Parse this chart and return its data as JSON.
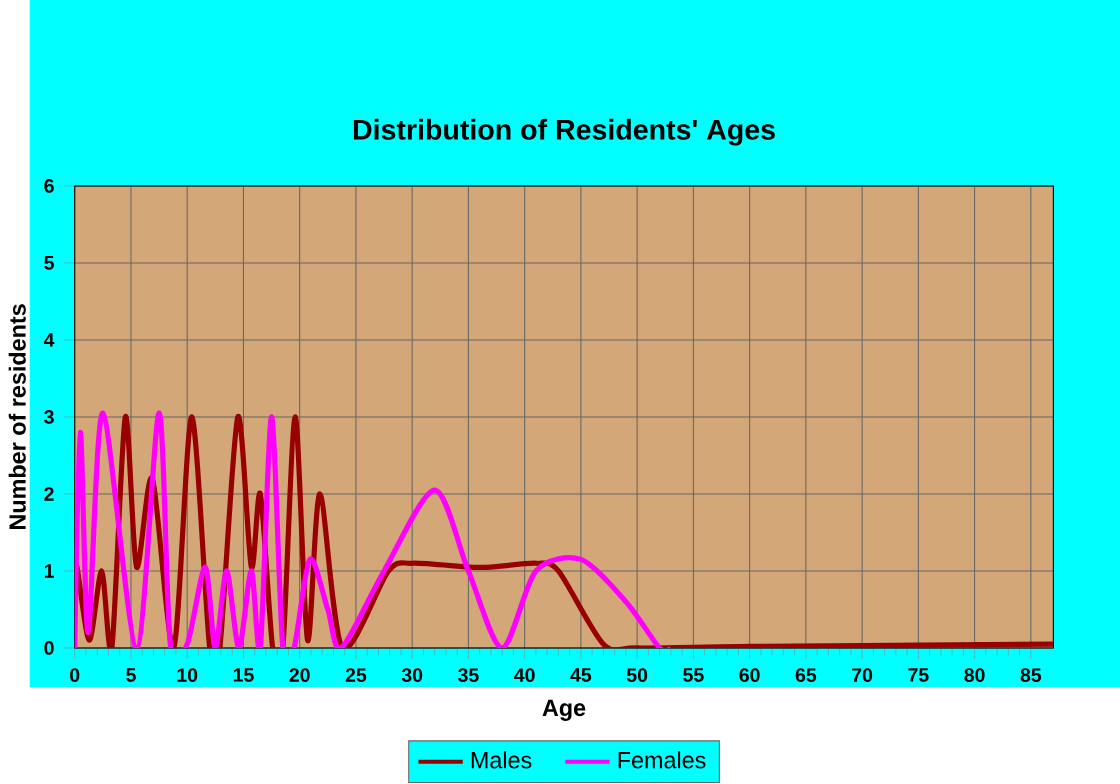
{
  "chart_data": {
    "type": "line",
    "title": "Distribution of Residents' Ages",
    "xlabel": "Age",
    "ylabel": "Number of residents",
    "xlim": [
      0,
      87
    ],
    "ylim": [
      0,
      6
    ],
    "xticks": [
      0,
      5,
      10,
      15,
      20,
      25,
      30,
      35,
      40,
      45,
      50,
      55,
      60,
      65,
      70,
      75,
      80,
      85
    ],
    "yticks": [
      0,
      1,
      2,
      3,
      4,
      5,
      6
    ],
    "grid": true,
    "legend": "bottom",
    "marker": "none",
    "line_style": "solid",
    "series": [
      {
        "name": "Males",
        "color": "#990000",
        "x": [
          0,
          0.2,
          1.3,
          2.4,
          3.3,
          4.5,
          5.5,
          6.9,
          8.8,
          10.4,
          12,
          12.9,
          14.5,
          15.7,
          16.5,
          17.6,
          18.5,
          19.6,
          20.7,
          21.8,
          23.8,
          27.9,
          30,
          35,
          37,
          41,
          43,
          47,
          50,
          60,
          70,
          87
        ],
        "values": [
          0.9,
          1.05,
          0.1,
          1.0,
          0,
          3.0,
          1.05,
          2.2,
          0,
          3.0,
          0,
          0,
          3.0,
          1.05,
          2.0,
          0,
          0,
          3.0,
          0.1,
          2.0,
          0,
          1.0,
          1.1,
          1.05,
          1.05,
          1.1,
          1.0,
          0.05,
          0,
          0.02,
          0.03,
          0.05
        ]
      },
      {
        "name": "Females",
        "color": "#ff00ff",
        "x": [
          0,
          0.5,
          1.2,
          2.5,
          5.5,
          7.5,
          8.5,
          10,
          11.6,
          12.5,
          13.5,
          14.6,
          15.7,
          16.5,
          17.5,
          18.5,
          19.5,
          20.9,
          22.5,
          23.7,
          27.5,
          32,
          35,
          38,
          41,
          45,
          49,
          52,
          53
        ],
        "values": [
          0,
          2.8,
          0.2,
          3.05,
          0,
          3.05,
          0.05,
          0.05,
          1.05,
          0,
          1.0,
          0,
          1.0,
          0,
          3.0,
          0,
          0,
          1.15,
          0.5,
          0,
          1.0,
          2.05,
          1.0,
          0,
          1.0,
          1.15,
          0.6,
          0,
          0
        ]
      }
    ]
  }
}
